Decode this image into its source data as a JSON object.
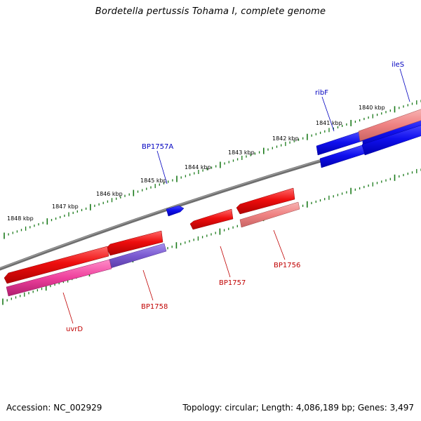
{
  "title": "Bordetella pertussis Tohama I, complete genome",
  "footer": {
    "accession": "Accession: NC_002929",
    "summary": "Topology: circular; Length: 4,086,189 bp; Genes: 3,497"
  },
  "ruler": {
    "tick_color": "#1a7a1a",
    "labels": [
      "1848 kbp",
      "1847 kbp",
      "1846 kbp",
      "1845 kbp",
      "1844 kbp",
      "1843 kbp",
      "1842 kbp",
      "1841 kbp",
      "1840 kbp"
    ]
  },
  "backbone_color": "#808080",
  "colors": {
    "forward": "#1010ee",
    "reverse": "#ee0e0e",
    "reverse_light": "#ef8282",
    "reverse_pink": "#ee3f9c",
    "reverse_lavender": "#7a5ad0"
  },
  "gene_labels": {
    "ileS": "ileS",
    "ribF": "ribF",
    "BP1757A": "BP1757A",
    "BP1756": "BP1756",
    "BP1757": "BP1757",
    "BP1758": "BP1758",
    "uvrD": "uvrD"
  },
  "label_colors": {
    "forward": "#0000c0",
    "reverse": "#c00000"
  }
}
